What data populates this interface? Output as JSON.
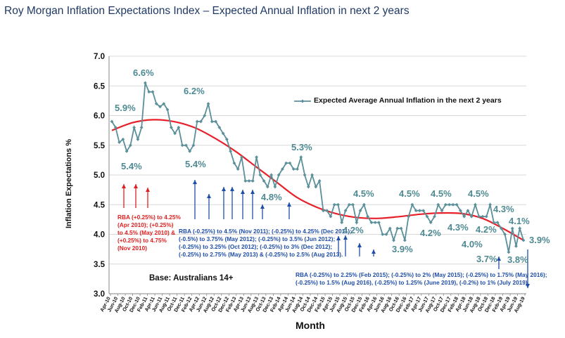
{
  "title": "Roy Morgan Inflation Expectations Index – Expected Annual Inflation in next 2 years",
  "chart_data": {
    "type": "line",
    "ylabel": "Inflation Expectations %",
    "xlabel": "Month",
    "ylim": [
      3.0,
      7.0
    ],
    "yticks": [
      "3.0",
      "3.5",
      "4.0",
      "4.5",
      "5.0",
      "5.5",
      "6.0",
      "6.5",
      "7.0"
    ],
    "xtick_labels": [
      "Apr-10",
      "Jun-10",
      "Aug-10",
      "Oct-10",
      "Dec-10",
      "Feb-11",
      "Apr-11",
      "Jun-11",
      "Aug-11",
      "Oct-11",
      "Dec-11",
      "Feb-12",
      "Apr-12",
      "Jun-12",
      "Aug-12",
      "Oct-12",
      "Dec-12",
      "Feb-13",
      "Apr-13",
      "Jun-13",
      "Aug-13",
      "Oct-13",
      "Dec-13",
      "Feb-14",
      "Apr-14",
      "Jun-14",
      "Aug-14",
      "Oct-14",
      "Dec-14",
      "Feb-15",
      "Apr-15",
      "Jun-15",
      "Aug-15",
      "Oct-15",
      "Dec-15",
      "Feb-16",
      "Apr-16",
      "Jun-16",
      "Aug-16",
      "Oct-16",
      "Dec-16",
      "Feb-17",
      "Apr-17",
      "Jun-17",
      "Aug-17",
      "Oct-17",
      "Dec-17",
      "Feb-18",
      "Apr-18",
      "Jun-18",
      "Aug-18",
      "Oct-18",
      "Dec-18",
      "Feb-19",
      "Apr-19",
      "Jun-19",
      "Aug-19"
    ],
    "series": [
      {
        "name": "Expected Average Annual Inflation in the next 2 years",
        "values": [
          5.9,
          5.8,
          5.55,
          5.6,
          5.4,
          5.5,
          5.8,
          5.6,
          5.8,
          6.55,
          6.4,
          6.4,
          6.2,
          6.15,
          6.2,
          6.1,
          5.8,
          5.7,
          5.8,
          5.5,
          5.5,
          5.4,
          5.5,
          5.9,
          5.9,
          6.0,
          6.2,
          5.9,
          5.9,
          5.8,
          5.7,
          5.6,
          5.4,
          5.2,
          5.1,
          5.3,
          4.9,
          4.9,
          4.9,
          5.3,
          5.0,
          4.9,
          4.8,
          5.0,
          4.8,
          5.0,
          5.1,
          5.2,
          5.2,
          5.1,
          5.1,
          5.3,
          5.0,
          4.8,
          5.0,
          4.8,
          4.9,
          4.4,
          4.4,
          4.3,
          4.5,
          4.5,
          4.2,
          4.4,
          4.5,
          4.5,
          4.2,
          4.4,
          4.5,
          4.3,
          4.2,
          4.2,
          4.2,
          4.0,
          4.0,
          4.1,
          3.9,
          4.1,
          4.1,
          3.9,
          4.3,
          4.5,
          4.4,
          4.4,
          4.4,
          4.3,
          4.2,
          4.3,
          4.5,
          4.4,
          4.5,
          4.5,
          4.5,
          4.5,
          4.4,
          4.3,
          4.4,
          4.3,
          4.5,
          4.3,
          4.3,
          4.3,
          4.5,
          4.2,
          4.2,
          4.1,
          4.0,
          3.7,
          4.1,
          3.8,
          4.1,
          3.9
        ]
      },
      {
        "name": "Trend",
        "color": "#e8202a",
        "values": [
          5.75,
          5.88,
          5.93,
          5.9,
          5.8,
          5.62,
          5.4,
          5.14,
          4.88,
          4.62,
          4.45,
          4.34,
          4.28,
          4.27,
          4.3,
          4.34,
          4.36,
          4.35,
          4.27,
          4.1,
          3.9
        ]
      }
    ],
    "point_labels": [
      "5.9%",
      "6.6%",
      "5.4%",
      "6.2%",
      "5.4%",
      "5.3%",
      "4.8%",
      "4.5%",
      "4.2%",
      "4.5%",
      "4.5%",
      "4.5%",
      "3.9%",
      "4.2%",
      "4.3%",
      "4.2%",
      "4.3%",
      "4.0%",
      "3.7%",
      "3.8%",
      "4.1%",
      "3.9%"
    ],
    "annotations": {
      "base": "Base: Australians 14+",
      "rba_up": [
        "RBA (+0.25%) to 4.25%",
        "(Apr 2010); (+0.25%)",
        "to 4.5% (May 2010) &",
        "(+0.25%) to 4.75%",
        "(Nov 2010)"
      ],
      "rba_cuts_1": [
        "RBA (-0.25%) to 4.5% (Nov 2011); (-0.25%) to 4.25% (Dec 2011);",
        "(-0.5%) to 3.75% (May 2012); (-0.25%) to 3.5% (Jun 2012);",
        "(-0.25%) to 3.25% (Oct 2012); (-0.25%) to 3% (Dec 2012);",
        "(-0.25%) to 2.75% (May 2013) & (-0.25%) to 2.5% (Aug 2013)."
      ],
      "rba_cuts_2": [
        "RBA (-0.25%) to 2.25% (Feb 2015); (-0.25%) to 2% (May 2015); (-0.25%) to 1.75% (May 2016);",
        "(-0.25%) to 1.5% (Aug 2016), (-0.25%) to 1.25% (June 2019), (-0.2%) to 1% (July 2019)."
      ]
    }
  },
  "colors": {
    "series": "#5b8f9a",
    "trend": "#e8202a",
    "up": "#e02020",
    "down": "#1f4ea8",
    "label": "#4e8a92"
  }
}
